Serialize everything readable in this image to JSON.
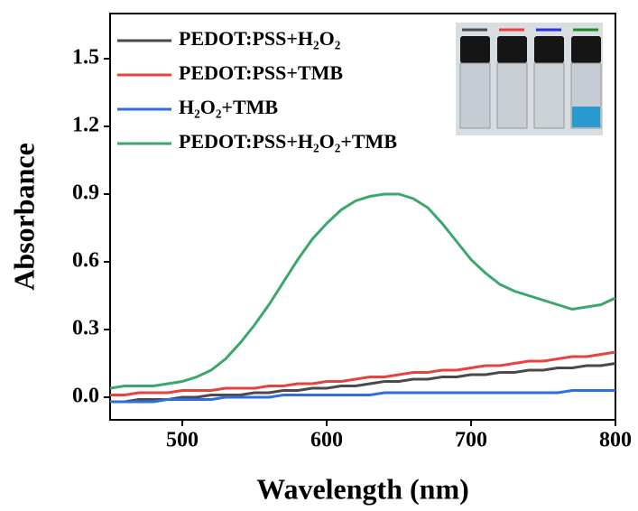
{
  "chart_data": {
    "type": "line",
    "xlabel": "Wavelength (nm)",
    "ylabel": "Absorbance",
    "x": [
      450,
      460,
      470,
      480,
      490,
      500,
      510,
      520,
      530,
      540,
      550,
      560,
      570,
      580,
      590,
      600,
      610,
      620,
      630,
      640,
      650,
      660,
      670,
      680,
      690,
      700,
      710,
      720,
      730,
      740,
      750,
      760,
      770,
      780,
      790,
      800
    ],
    "series": [
      {
        "name": "PEDOT:PSS+H₂O₂",
        "color": "#4a4a4a",
        "values": [
          -0.02,
          -0.02,
          -0.01,
          -0.01,
          -0.01,
          0,
          0,
          0.01,
          0.01,
          0.01,
          0.02,
          0.02,
          0.03,
          0.03,
          0.04,
          0.04,
          0.05,
          0.05,
          0.06,
          0.07,
          0.07,
          0.08,
          0.08,
          0.09,
          0.09,
          0.1,
          0.1,
          0.11,
          0.11,
          0.12,
          0.12,
          0.13,
          0.13,
          0.14,
          0.14,
          0.15
        ]
      },
      {
        "name": "PEDOT:PSS+TMB",
        "color": "#e8413f",
        "values": [
          0.01,
          0.01,
          0.02,
          0.02,
          0.02,
          0.03,
          0.03,
          0.03,
          0.04,
          0.04,
          0.04,
          0.05,
          0.05,
          0.06,
          0.06,
          0.07,
          0.07,
          0.08,
          0.09,
          0.09,
          0.1,
          0.11,
          0.11,
          0.12,
          0.12,
          0.13,
          0.14,
          0.14,
          0.15,
          0.16,
          0.16,
          0.17,
          0.18,
          0.18,
          0.19,
          0.2
        ]
      },
      {
        "name": "H₂O₂+TMB",
        "color": "#2e6fdc",
        "values": [
          -0.02,
          -0.02,
          -0.02,
          -0.02,
          -0.01,
          -0.01,
          -0.01,
          -0.01,
          0,
          0,
          0,
          0,
          0.01,
          0.01,
          0.01,
          0.01,
          0.01,
          0.01,
          0.01,
          0.02,
          0.02,
          0.02,
          0.02,
          0.02,
          0.02,
          0.02,
          0.02,
          0.02,
          0.02,
          0.02,
          0.02,
          0.02,
          0.03,
          0.03,
          0.03,
          0.03
        ]
      },
      {
        "name": "PEDOT:PSS+H₂O₂+TMB",
        "color": "#3aa86b",
        "values": [
          0.04,
          0.05,
          0.05,
          0.05,
          0.06,
          0.07,
          0.09,
          0.12,
          0.17,
          0.24,
          0.32,
          0.41,
          0.51,
          0.61,
          0.7,
          0.77,
          0.83,
          0.87,
          0.89,
          0.9,
          0.9,
          0.88,
          0.84,
          0.77,
          0.69,
          0.61,
          0.55,
          0.5,
          0.47,
          0.45,
          0.43,
          0.41,
          0.39,
          0.4,
          0.41,
          0.44
        ]
      }
    ],
    "xlim": [
      450,
      800
    ],
    "xticks": [
      500,
      600,
      700,
      800
    ],
    "ylim": [
      -0.1,
      1.7
    ],
    "yticks": [
      {
        "value": 0,
        "label": "0.0"
      },
      0.3,
      0.6,
      0.9,
      1.2,
      1.5
    ],
    "legend": "upper-left"
  }
}
